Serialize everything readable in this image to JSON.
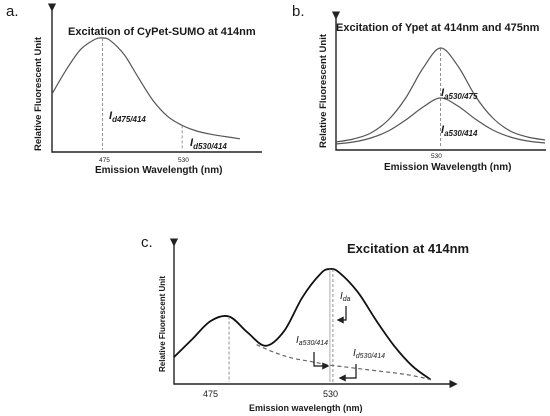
{
  "chart_data": [
    {
      "id": "a",
      "type": "line",
      "panel_label": "a.",
      "title": "Excitation of CyPet-SUMO  at 414nm",
      "xlabel": "Emission Wavelength (nm)",
      "ylabel": "Relative Fluorescent Unit",
      "xlim": [
        440,
        570
      ],
      "ylim": [
        0,
        1.05
      ],
      "x_ticks": [
        "475",
        "530"
      ],
      "series": [
        {
          "x": [
            440,
            450,
            460,
            470,
            475,
            480,
            490,
            500,
            510,
            520,
            530,
            540,
            550,
            560,
            570
          ],
          "y": [
            0.5,
            0.72,
            0.9,
            0.99,
            1.0,
            0.98,
            0.85,
            0.64,
            0.44,
            0.3,
            0.22,
            0.17,
            0.14,
            0.12,
            0.1
          ]
        }
      ],
      "annotations": [
        {
          "main": "I",
          "sub": "d475/414",
          "x": 475
        },
        {
          "main": "I",
          "sub": "d530/414",
          "x": 530
        }
      ]
    },
    {
      "id": "b",
      "type": "line",
      "panel_label": "b.",
      "title": "Excitation of Ypet at 414nm and 475nm",
      "xlabel": "Emission Wavelength (nm)",
      "ylabel": "Relative Fluorescent Unit",
      "xlim": [
        470,
        590
      ],
      "ylim": [
        0,
        1.05
      ],
      "x_ticks": [
        "530"
      ],
      "series": [
        {
          "x": [
            470,
            480,
            490,
            500,
            510,
            520,
            530,
            540,
            550,
            560,
            570,
            580,
            590
          ],
          "y": [
            0.06,
            0.09,
            0.15,
            0.28,
            0.5,
            0.8,
            1.0,
            0.82,
            0.52,
            0.3,
            0.17,
            0.11,
            0.08
          ]
        },
        {
          "x": [
            470,
            480,
            490,
            500,
            510,
            520,
            530,
            540,
            550,
            560,
            570,
            580,
            590
          ],
          "y": [
            0.04,
            0.06,
            0.1,
            0.17,
            0.28,
            0.41,
            0.5,
            0.42,
            0.29,
            0.18,
            0.11,
            0.07,
            0.05
          ]
        }
      ],
      "annotations": [
        {
          "main": "I",
          "sub": "a530/475",
          "x": 530
        },
        {
          "main": "I",
          "sub": "a530/414",
          "x": 530
        }
      ]
    },
    {
      "id": "c",
      "type": "line",
      "panel_label": "c.",
      "title": "Excitation at 414nm",
      "xlabel": "Emission wavelength (nm)",
      "ylabel": "Relative Fluorescent Unit",
      "xlim": [
        445,
        590
      ],
      "ylim": [
        0,
        1.05
      ],
      "x_ticks": [
        "475",
        "530"
      ],
      "series": [
        {
          "x": [
            445,
            455,
            465,
            475,
            485,
            495,
            505,
            515,
            525,
            530,
            535,
            545,
            555,
            565,
            575,
            585
          ],
          "y": [
            0.22,
            0.38,
            0.54,
            0.58,
            0.44,
            0.32,
            0.45,
            0.75,
            0.96,
            1.0,
            0.97,
            0.8,
            0.55,
            0.32,
            0.14,
            0.02
          ]
        },
        {
          "x": [
            490,
            500,
            510,
            520,
            530,
            540,
            550,
            560,
            570,
            580,
            585
          ],
          "y": [
            0.33,
            0.26,
            0.21,
            0.18,
            0.15,
            0.13,
            0.11,
            0.09,
            0.07,
            0.04,
            0.02
          ]
        }
      ],
      "annotations": [
        {
          "main": "I",
          "sub": "da",
          "x": 530
        },
        {
          "main": "I",
          "sub": "a530/414",
          "x": 530
        },
        {
          "main": "I",
          "sub": "d530/414",
          "x": 530
        }
      ]
    }
  ]
}
